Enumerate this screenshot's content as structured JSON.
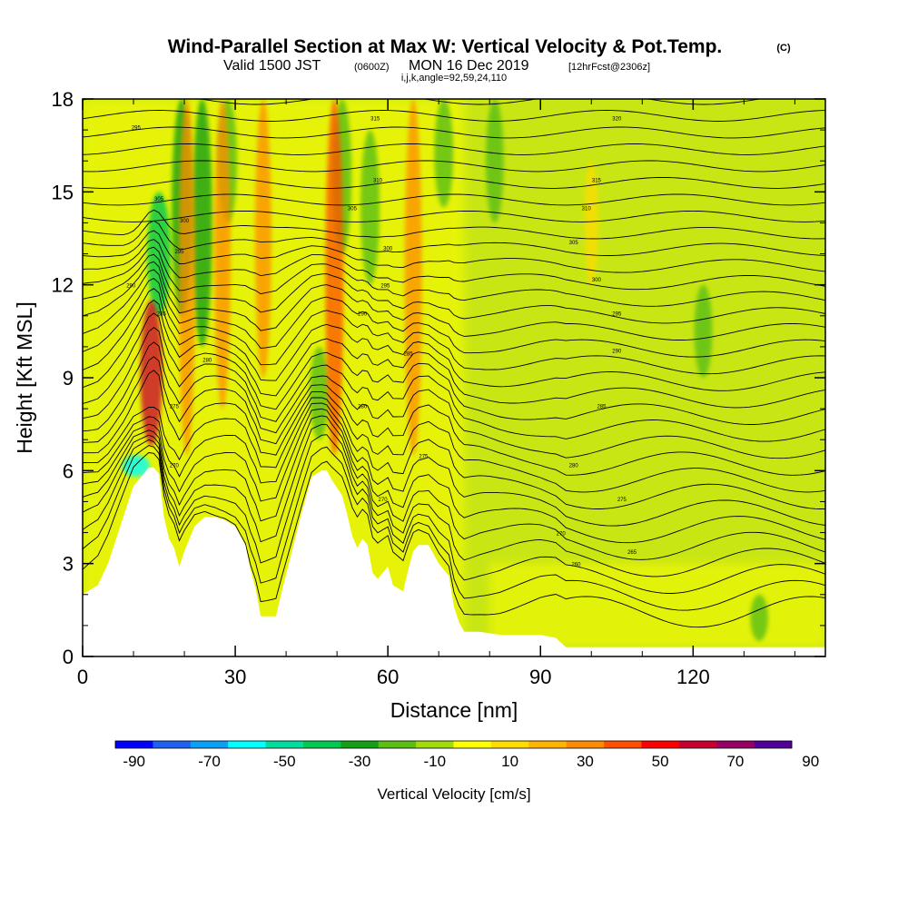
{
  "chart_data": {
    "type": "heatmap",
    "title": "Wind-Parallel Section at Max W: Vertical Velocity & Pot.Temp.",
    "title_mark": "(C)",
    "subtitle_left": "Valid 1500 JST",
    "subtitle_utc": "(0600Z)",
    "subtitle_date": "MON 16 Dec 2019",
    "subtitle_fcst": "[12hrFcst@2306z]",
    "subtitle_params": "i,j,k,angle=92,59,24,110",
    "xlabel": "Distance [nm]",
    "ylabel": "Height [Kft MSL]",
    "xlim": [
      0,
      146
    ],
    "ylim": [
      0,
      18
    ],
    "x_ticks": [
      "0",
      "30",
      "60",
      "90",
      "120"
    ],
    "x_tick_values": [
      0,
      30,
      60,
      90,
      120
    ],
    "y_ticks": [
      "0",
      "3",
      "6",
      "9",
      "12",
      "15",
      "18"
    ],
    "y_tick_values": [
      0,
      3,
      6,
      9,
      12,
      15,
      18
    ],
    "colorbar": {
      "label": "Vertical Velocity [cm/s]",
      "tick_labels": [
        "-90",
        "-70",
        "-50",
        "-30",
        "-10",
        "10",
        "30",
        "50",
        "70",
        "90"
      ],
      "colors": [
        "#0000ff",
        "#1e60f0",
        "#0aa0f5",
        "#00ffff",
        "#00dca0",
        "#00c850",
        "#14a014",
        "#5abe14",
        "#a0dc0a",
        "#ffff00",
        "#ffdc00",
        "#ffb400",
        "#ff8c00",
        "#ff5000",
        "#ff0000",
        "#c80032",
        "#960064",
        "#500096"
      ]
    },
    "terrain": [
      [
        0,
        2
      ],
      [
        3,
        2.3
      ],
      [
        5,
        3
      ],
      [
        7,
        4
      ],
      [
        9,
        5
      ],
      [
        10,
        5.5
      ],
      [
        13,
        6.1
      ],
      [
        14,
        6.1
      ],
      [
        15,
        5.9
      ],
      [
        16,
        4.5
      ],
      [
        17,
        3.8
      ],
      [
        18,
        3.5
      ],
      [
        19,
        2.9
      ],
      [
        20,
        3.4
      ],
      [
        22,
        4.2
      ],
      [
        24,
        4.5
      ],
      [
        26,
        4.5
      ],
      [
        28,
        4.4
      ],
      [
        30,
        4.2
      ],
      [
        32,
        3.6
      ],
      [
        33,
        2.8
      ],
      [
        34,
        2.2
      ],
      [
        35,
        1.3
      ],
      [
        38,
        1.3
      ],
      [
        39,
        2
      ],
      [
        41,
        3.3
      ],
      [
        43,
        4.6
      ],
      [
        44,
        5.2
      ],
      [
        45,
        5.8
      ],
      [
        47,
        6
      ],
      [
        48,
        6
      ],
      [
        49,
        5.7
      ],
      [
        51,
        5.2
      ],
      [
        52,
        4.6
      ],
      [
        53,
        3.9
      ],
      [
        54,
        3.5
      ],
      [
        55,
        3.8
      ],
      [
        56,
        3.6
      ],
      [
        57,
        2.7
      ],
      [
        58,
        2.5
      ],
      [
        60,
        2.9
      ],
      [
        61,
        2.3
      ],
      [
        63,
        2.1
      ],
      [
        64,
        2.8
      ],
      [
        65,
        3.4
      ],
      [
        66,
        3.6
      ],
      [
        68,
        3.6
      ],
      [
        70,
        3.0
      ],
      [
        72,
        2.6
      ],
      [
        73,
        1.6
      ],
      [
        74,
        1.1
      ],
      [
        75,
        0.8
      ],
      [
        78,
        0.8
      ],
      [
        82,
        0.7
      ],
      [
        90,
        0.7
      ],
      [
        93,
        0.6
      ],
      [
        95,
        0.3
      ],
      [
        98,
        0.3
      ],
      [
        105,
        0.3
      ],
      [
        110,
        0.3
      ],
      [
        122,
        0.3
      ],
      [
        124,
        0.3
      ],
      [
        126,
        0.3
      ],
      [
        135,
        0.3
      ],
      [
        146,
        0.3
      ]
    ],
    "updrafts": [
      {
        "x": 13.5,
        "y_top": 11.5,
        "y_bot": 6.8,
        "w_cm_s": 60
      },
      {
        "x": 20.5,
        "y_top": 18,
        "y_bot": 6.5,
        "w_cm_s": 30
      },
      {
        "x": 27.5,
        "y_top": 18,
        "y_bot": 8,
        "w_cm_s": 30
      },
      {
        "x": 35.5,
        "y_top": 18,
        "y_bot": 9,
        "w_cm_s": 30
      },
      {
        "x": 49.5,
        "y_top": 18,
        "y_bot": 6.5,
        "w_cm_s": 40
      },
      {
        "x": 65,
        "y_top": 18,
        "y_bot": 6.5,
        "w_cm_s": 35
      },
      {
        "x": 100,
        "y_top": 16,
        "y_bot": 12,
        "w_cm_s": 15
      }
    ],
    "downdrafts": [
      {
        "x": 15,
        "y_top": 15,
        "y_bot": 11,
        "w_cm_s": -40
      },
      {
        "x": 10.5,
        "y_top": 6.5,
        "y_bot": 5.8,
        "w_cm_s": -60
      },
      {
        "x": 19.5,
        "y_top": 18,
        "y_bot": 11,
        "w_cm_s": -25
      },
      {
        "x": 23.5,
        "y_top": 18,
        "y_bot": 10,
        "w_cm_s": -25
      },
      {
        "x": 28.5,
        "y_top": 18,
        "y_bot": 14,
        "w_cm_s": -20
      },
      {
        "x": 46.5,
        "y_top": 10,
        "y_bot": 7,
        "w_cm_s": -20
      },
      {
        "x": 51,
        "y_top": 18,
        "y_bot": 13,
        "w_cm_s": -20
      },
      {
        "x": 56.5,
        "y_top": 17,
        "y_bot": 12,
        "w_cm_s": -20
      },
      {
        "x": 71,
        "y_top": 18,
        "y_bot": 14.5,
        "w_cm_s": -20
      },
      {
        "x": 81,
        "y_top": 18,
        "y_bot": 14,
        "w_cm_s": -15
      },
      {
        "x": 122,
        "y_top": 12,
        "y_bot": 9,
        "w_cm_s": -15
      },
      {
        "x": 133,
        "y_top": 2,
        "y_bot": 0.5,
        "w_cm_s": -15
      }
    ],
    "theta_contours_count": 32,
    "theta_contour_labels": [
      {
        "text": "295",
        "x": 10.5,
        "y": 17.1
      },
      {
        "text": "305",
        "x": 15,
        "y": 14.8
      },
      {
        "text": "300",
        "x": 20,
        "y": 14.1
      },
      {
        "text": "295",
        "x": 19,
        "y": 13.1
      },
      {
        "text": "290",
        "x": 9.5,
        "y": 12
      },
      {
        "text": "285",
        "x": 15.5,
        "y": 11.1
      },
      {
        "text": "280",
        "x": 24.5,
        "y": 9.6
      },
      {
        "text": "275",
        "x": 18,
        "y": 8.1
      },
      {
        "text": "270",
        "x": 18,
        "y": 6.2
      },
      {
        "text": "315",
        "x": 57.5,
        "y": 17.4
      },
      {
        "text": "310",
        "x": 58,
        "y": 15.4
      },
      {
        "text": "305",
        "x": 53,
        "y": 14.5
      },
      {
        "text": "300",
        "x": 60,
        "y": 13.2
      },
      {
        "text": "295",
        "x": 59.5,
        "y": 12.0
      },
      {
        "text": "290",
        "x": 55,
        "y": 11.1
      },
      {
        "text": "285",
        "x": 64,
        "y": 9.8
      },
      {
        "text": "280",
        "x": 55,
        "y": 8.1
      },
      {
        "text": "275",
        "x": 67,
        "y": 6.5
      },
      {
        "text": "270",
        "x": 59,
        "y": 5.1
      },
      {
        "text": "320",
        "x": 105,
        "y": 17.4
      },
      {
        "text": "315",
        "x": 101,
        "y": 15.4
      },
      {
        "text": "310",
        "x": 99,
        "y": 14.5
      },
      {
        "text": "305",
        "x": 96.5,
        "y": 13.4
      },
      {
        "text": "300",
        "x": 101,
        "y": 12.2
      },
      {
        "text": "295",
        "x": 105,
        "y": 11.1
      },
      {
        "text": "290",
        "x": 105,
        "y": 9.9
      },
      {
        "text": "285",
        "x": 102,
        "y": 8.1
      },
      {
        "text": "280",
        "x": 96.5,
        "y": 6.2
      },
      {
        "text": "275",
        "x": 106,
        "y": 5.1
      },
      {
        "text": "270",
        "x": 94,
        "y": 4.0
      },
      {
        "text": "265",
        "x": 108,
        "y": 3.4
      },
      {
        "text": "260",
        "x": 97,
        "y": 3.0
      }
    ]
  }
}
